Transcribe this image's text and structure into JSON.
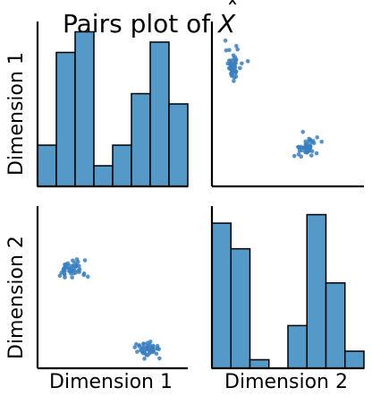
{
  "title": {
    "text": "Pairs plot of",
    "hat_symbol": "X",
    "hat": "ˆ"
  },
  "variables": [
    "Dimension 1",
    "Dimension 2"
  ],
  "colors": {
    "fill": "#5499c7",
    "edge": "#000000",
    "point": "#3a7fc0"
  },
  "chart_data": {
    "type": "scatter",
    "title": "Pairs plot of X̂",
    "grid": false,
    "panels": [
      {
        "row": 0,
        "col": 0,
        "type": "bar",
        "description": "Histogram of Dimension 1",
        "xlim": [
          0,
          8
        ],
        "ylim": [
          0,
          16
        ],
        "bins": [
          [
            0,
            1
          ],
          [
            1,
            2
          ],
          [
            2,
            3
          ],
          [
            3,
            4
          ],
          [
            4,
            5
          ],
          [
            5,
            6
          ],
          [
            6,
            7
          ],
          [
            7,
            8
          ]
        ],
        "values": [
          4,
          13,
          15,
          2,
          4,
          9,
          14,
          8
        ]
      },
      {
        "row": 0,
        "col": 1,
        "type": "scatter",
        "xlabel": "Dimension 2",
        "ylabel": "Dimension 1",
        "xlim": [
          0,
          10
        ],
        "ylim": [
          0,
          10
        ],
        "clusters": [
          {
            "center": [
              1.4,
              7.4
            ],
            "spread": [
              0.45,
              0.9
            ],
            "n": 48
          },
          {
            "center": [
              6.2,
              2.3
            ],
            "spread": [
              0.75,
              0.55
            ],
            "n": 48
          }
        ]
      },
      {
        "row": 1,
        "col": 0,
        "type": "scatter",
        "xlabel": "Dimension 1",
        "ylabel": "Dimension 2",
        "xlim": [
          0,
          10
        ],
        "ylim": [
          0,
          10
        ],
        "clusters": [
          {
            "center": [
              2.2,
              6.1
            ],
            "spread": [
              0.9,
              0.55
            ],
            "n": 48
          },
          {
            "center": [
              7.4,
              1.2
            ],
            "spread": [
              0.75,
              0.45
            ],
            "n": 48
          }
        ]
      },
      {
        "row": 1,
        "col": 1,
        "type": "bar",
        "description": "Histogram of Dimension 2",
        "xlim": [
          0,
          8
        ],
        "ylim": [
          0,
          19
        ],
        "bins": [
          [
            0,
            1
          ],
          [
            1,
            2
          ],
          [
            2,
            3
          ],
          [
            3,
            4
          ],
          [
            4,
            5
          ],
          [
            5,
            6
          ],
          [
            6,
            7
          ],
          [
            7,
            8
          ]
        ],
        "values": [
          17,
          14,
          1,
          0,
          5,
          18,
          10,
          2
        ]
      }
    ]
  }
}
